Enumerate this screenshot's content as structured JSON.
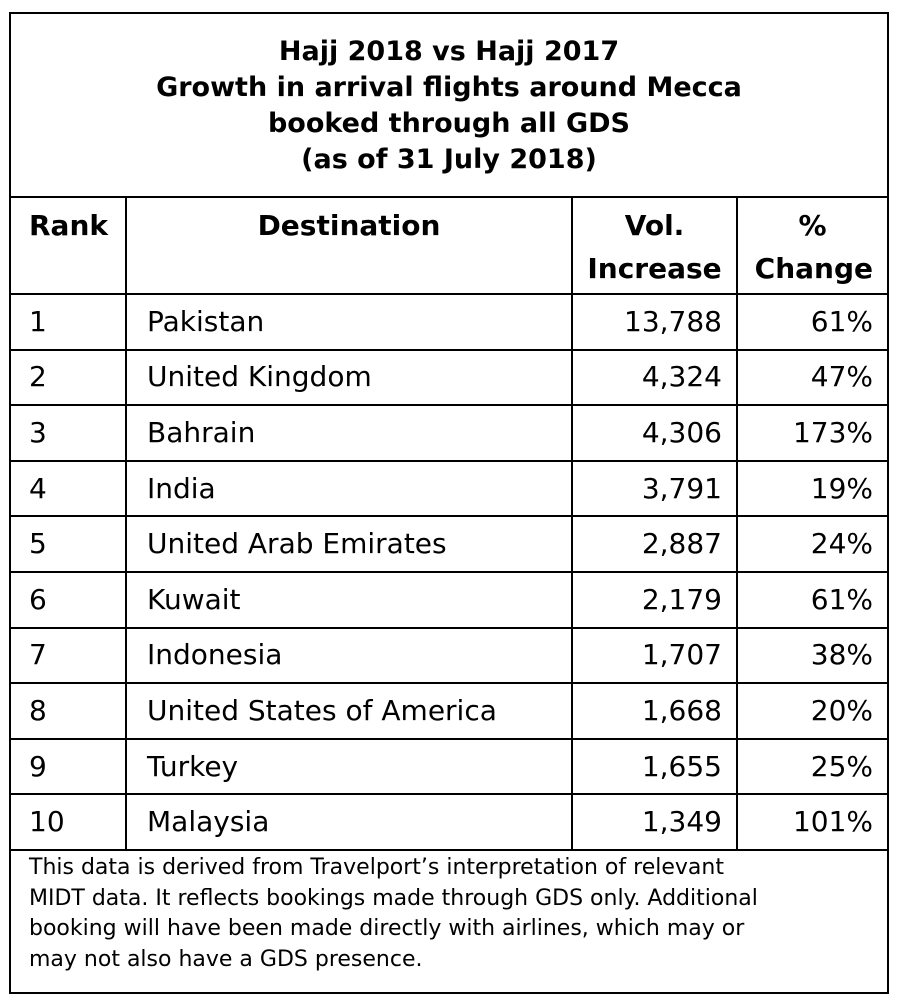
{
  "chart_data": {
    "type": "table",
    "title_lines": [
      "Hajj 2018 vs Hajj 2017",
      "Growth in arrival flights around Mecca",
      "booked through all GDS",
      "(as of 31 July 2018)"
    ],
    "columns": {
      "rank": "Rank",
      "destination": "Destination",
      "vol": [
        "Vol.",
        "Increase"
      ],
      "pct": [
        "%",
        "Change"
      ]
    },
    "rows": [
      {
        "rank": "1",
        "destination": "Pakistan",
        "vol": "13,788",
        "pct": "61%"
      },
      {
        "rank": "2",
        "destination": "United Kingdom",
        "vol": "4,324",
        "pct": "47%"
      },
      {
        "rank": "3",
        "destination": "Bahrain",
        "vol": "4,306",
        "pct": "173%"
      },
      {
        "rank": "4",
        "destination": "India",
        "vol": "3,791",
        "pct": "19%"
      },
      {
        "rank": "5",
        "destination": "United Arab Emirates",
        "vol": "2,887",
        "pct": "24%"
      },
      {
        "rank": "6",
        "destination": "Kuwait",
        "vol": "2,179",
        "pct": "61%"
      },
      {
        "rank": "7",
        "destination": "Indonesia",
        "vol": "1,707",
        "pct": "38%"
      },
      {
        "rank": "8",
        "destination": "United States of America",
        "vol": "1,668",
        "pct": "20%"
      },
      {
        "rank": "9",
        "destination": "Turkey",
        "vol": "1,655",
        "pct": "25%"
      },
      {
        "rank": "10",
        "destination": "Malaysia",
        "vol": "1,349",
        "pct": "101%"
      }
    ],
    "note_lines": [
      "This data is derived from Travelport’s interpretation of relevant",
      "MIDT data. It reflects bookings made through GDS only. Additional",
      "booking will have been made directly with airlines, which may or",
      "may not also have a GDS presence."
    ]
  }
}
